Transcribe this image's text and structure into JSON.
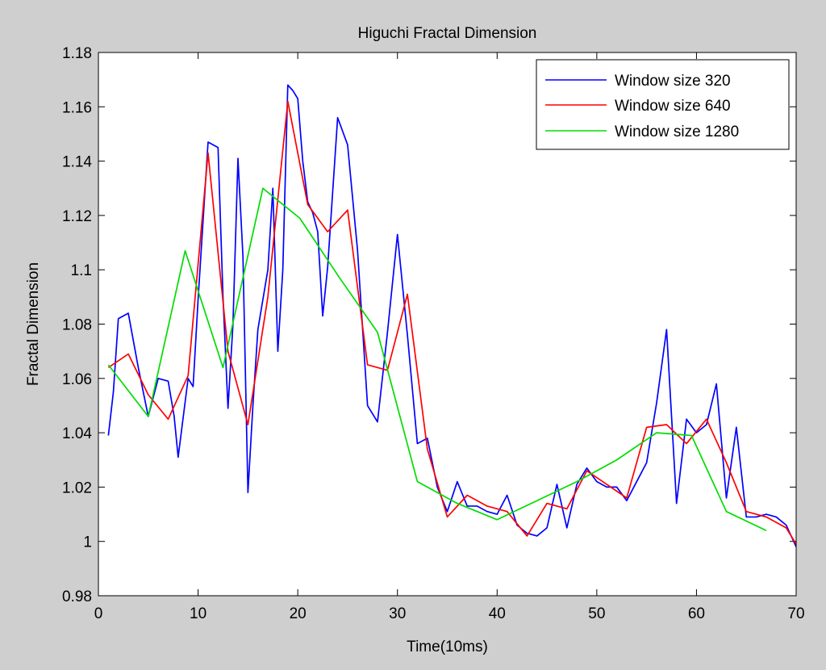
{
  "chart_data": {
    "type": "line",
    "title": "Higuchi Fractal Dimension",
    "xlabel": "Time(10ms)",
    "ylabel": "Fractal Dimension",
    "xlim": [
      0,
      70
    ],
    "ylim": [
      0.98,
      1.18
    ],
    "xticks": [
      0,
      10,
      20,
      30,
      40,
      50,
      60,
      70
    ],
    "xtick_labels": [
      "0",
      "10",
      "20",
      "30",
      "40",
      "50",
      "60",
      "70"
    ],
    "yticks": [
      0.98,
      1.0,
      1.02,
      1.04,
      1.06,
      1.08,
      1.1,
      1.12,
      1.14,
      1.16,
      1.18
    ],
    "ytick_labels": [
      "0.98",
      "1",
      "1.02",
      "1.04",
      "1.06",
      "1.08",
      "1.1",
      "1.12",
      "1.14",
      "1.16",
      "1.18"
    ],
    "grid": false,
    "legend_position": "top-right",
    "series": [
      {
        "name": "Window size 320",
        "color": "#0000ff",
        "x": [
          1,
          1.5,
          2,
          3,
          4,
          5,
          6,
          7,
          7.6,
          8,
          9,
          9.5,
          10,
          11,
          12,
          12.5,
          13,
          13.5,
          14,
          14.5,
          15,
          15.5,
          16,
          17,
          17.5,
          18,
          18.5,
          19,
          19.5,
          20,
          20.5,
          21,
          21.5,
          22,
          22.5,
          23,
          24,
          25,
          26,
          27,
          28,
          29,
          30,
          31,
          32,
          33,
          34,
          35,
          36,
          37,
          38,
          39,
          40,
          41,
          42,
          43,
          44,
          45,
          46,
          47,
          48,
          49,
          50,
          51,
          52,
          53,
          54,
          55,
          56,
          57,
          58,
          59,
          60,
          61,
          62,
          63,
          64,
          65,
          66,
          67,
          68,
          69,
          70
        ],
        "y": [
          1.039,
          1.055,
          1.082,
          1.084,
          1.064,
          1.046,
          1.06,
          1.059,
          1.046,
          1.031,
          1.06,
          1.057,
          1.089,
          1.147,
          1.145,
          1.09,
          1.049,
          1.08,
          1.141,
          1.105,
          1.018,
          1.05,
          1.078,
          1.1,
          1.13,
          1.07,
          1.1,
          1.168,
          1.166,
          1.163,
          1.14,
          1.125,
          1.121,
          1.114,
          1.083,
          1.101,
          1.156,
          1.146,
          1.107,
          1.05,
          1.044,
          1.077,
          1.113,
          1.076,
          1.036,
          1.038,
          1.02,
          1.011,
          1.022,
          1.013,
          1.013,
          1.011,
          1.01,
          1.017,
          1.006,
          1.003,
          1.002,
          1.005,
          1.021,
          1.005,
          1.021,
          1.027,
          1.022,
          1.02,
          1.02,
          1.015,
          1.022,
          1.029,
          1.051,
          1.078,
          1.014,
          1.045,
          1.04,
          1.043,
          1.058,
          1.016,
          1.042,
          1.009,
          1.009,
          1.01,
          1.009,
          1.006,
          0.998
        ]
      },
      {
        "name": "Window size 640",
        "color": "#ff0000",
        "x": [
          1,
          3,
          5,
          7,
          9,
          11,
          13,
          15,
          17,
          19,
          21,
          23,
          25,
          27,
          29,
          31,
          33,
          35,
          37,
          39,
          41,
          43,
          45,
          47,
          49,
          51,
          53,
          55,
          57,
          59,
          61,
          63,
          65,
          67,
          69,
          70
        ],
        "y": [
          1.064,
          1.069,
          1.054,
          1.045,
          1.061,
          1.143,
          1.07,
          1.043,
          1.09,
          1.162,
          1.124,
          1.114,
          1.122,
          1.065,
          1.063,
          1.091,
          1.034,
          1.009,
          1.017,
          1.013,
          1.011,
          1.002,
          1.014,
          1.012,
          1.026,
          1.021,
          1.016,
          1.042,
          1.043,
          1.036,
          1.045,
          1.029,
          1.011,
          1.009,
          1.005,
          0.999
        ]
      },
      {
        "name": "Window size 1280",
        "color": "#00dd00",
        "x": [
          1,
          5,
          8.7,
          12.5,
          16.5,
          20.2,
          24.2,
          28,
          32,
          36,
          40,
          44,
          48,
          52,
          56,
          59.5,
          63,
          67
        ],
        "y": [
          1.065,
          1.046,
          1.107,
          1.064,
          1.13,
          1.119,
          1.097,
          1.077,
          1.022,
          1.014,
          1.008,
          1.015,
          1.022,
          1.03,
          1.04,
          1.039,
          1.011,
          1.004
        ]
      }
    ]
  }
}
